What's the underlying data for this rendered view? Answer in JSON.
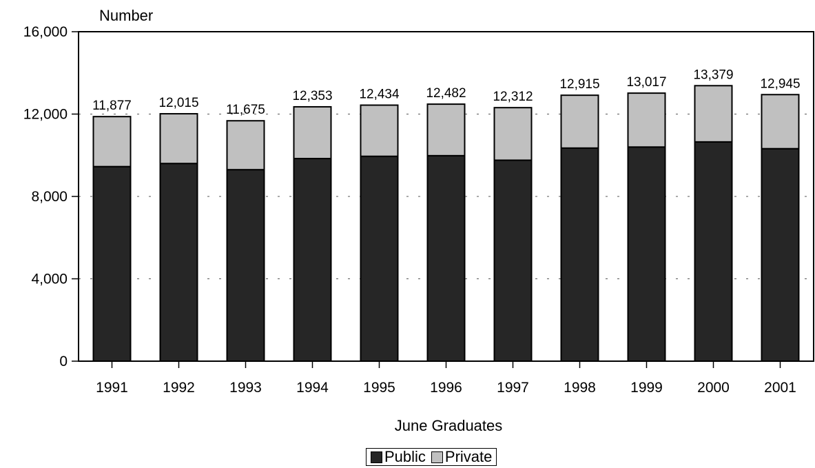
{
  "chart_data": {
    "type": "bar",
    "stacked": true,
    "xlabel": "June Graduates",
    "ylabel": "Number",
    "categories": [
      "1991",
      "1992",
      "1993",
      "1994",
      "1995",
      "1996",
      "1997",
      "1998",
      "1999",
      "2000",
      "2001"
    ],
    "series": [
      {
        "name": "Public",
        "color": "#262626",
        "values": [
          9450,
          9600,
          9300,
          9840,
          9950,
          9980,
          9760,
          10350,
          10400,
          10650,
          10320
        ]
      },
      {
        "name": "Private",
        "color": "#c0c0c0",
        "values": [
          2427,
          2415,
          2375,
          2513,
          2484,
          2502,
          2552,
          2565,
          2617,
          2729,
          2625
        ]
      }
    ],
    "totals": [
      11877,
      12015,
      11675,
      12353,
      12434,
      12482,
      12312,
      12915,
      13017,
      13379,
      12945
    ],
    "total_labels": [
      "11,877",
      "12,015",
      "11,675",
      "12,353",
      "12,434",
      "12,482",
      "12,312",
      "12,915",
      "13,017",
      "13,379",
      "12,945"
    ],
    "yticks": [
      0,
      4000,
      8000,
      12000,
      16000
    ],
    "ytick_labels": [
      "0",
      "4,000",
      "8,000",
      "12,000",
      "16,000"
    ],
    "ylim": [
      0,
      16000
    ],
    "grid": "horizontal dotted",
    "legend_position": "bottom-center"
  }
}
